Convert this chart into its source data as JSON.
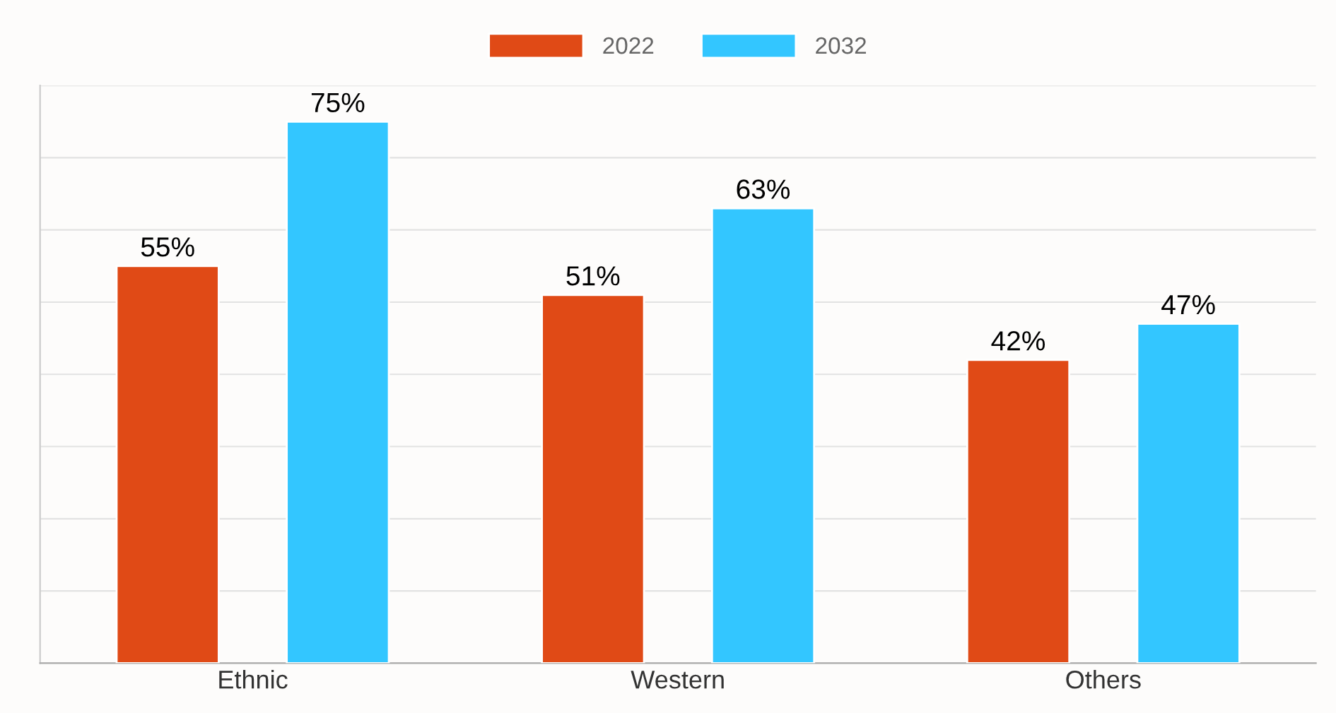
{
  "chart_data": {
    "type": "bar",
    "categories": [
      "Ethnic",
      "Western",
      "Others"
    ],
    "series": [
      {
        "name": "2022",
        "color": "#e04a16",
        "values": [
          55,
          51,
          42
        ],
        "value_labels": [
          "55%",
          "51%",
          "42%"
        ]
      },
      {
        "name": "2032",
        "color": "#33c6ff",
        "values": [
          75,
          63,
          47
        ],
        "value_labels": [
          "75%",
          "63%",
          "47%"
        ]
      }
    ],
    "ylim": [
      0,
      80
    ],
    "yticks": [
      {
        "value": 0,
        "label": null
      },
      {
        "value": 10,
        "label": null
      },
      {
        "value": 20,
        "label": null
      },
      {
        "value": 30,
        "label": null
      },
      {
        "value": 40,
        "label": null
      },
      {
        "value": 50,
        "label": null
      },
      {
        "value": 60,
        "label": null
      },
      {
        "value": 70,
        "label": null
      },
      {
        "value": 80,
        "label": null
      }
    ],
    "grid": "y",
    "legend": "top"
  }
}
